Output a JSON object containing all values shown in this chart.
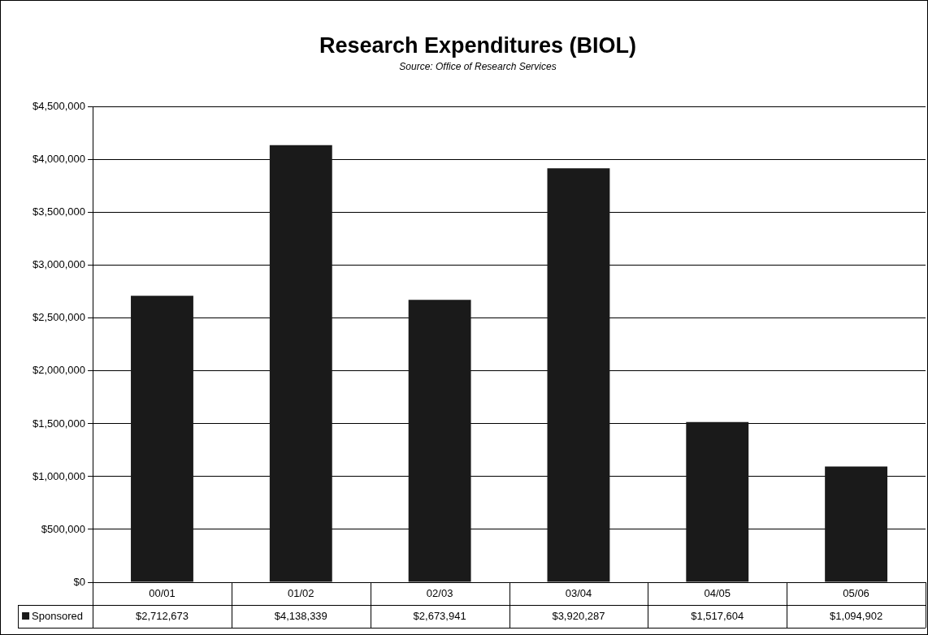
{
  "chart_data": {
    "type": "bar",
    "title": "Research Expenditures (BIOL)",
    "subtitle": "Source: Office of Research Services",
    "categories": [
      "00/01",
      "01/02",
      "02/03",
      "03/04",
      "04/05",
      "05/06"
    ],
    "series": [
      {
        "name": "Sponsored",
        "color": "#1a1a1a",
        "values": [
          2712673,
          4138339,
          2673941,
          3920287,
          1517604,
          1094902
        ],
        "value_labels": [
          "$2,712,673",
          "$4,138,339",
          "$2,673,941",
          "$3,920,287",
          "$1,517,604",
          "$1,094,902"
        ]
      }
    ],
    "ylim": [
      0,
      4500000
    ],
    "yticks": [
      {
        "value": 0,
        "label": "$0"
      },
      {
        "value": 500000,
        "label": "$500,000"
      },
      {
        "value": 1000000,
        "label": "$1,000,000"
      },
      {
        "value": 1500000,
        "label": "$1,500,000"
      },
      {
        "value": 2000000,
        "label": "$2,000,000"
      },
      {
        "value": 2500000,
        "label": "$2,500,000"
      },
      {
        "value": 3000000,
        "label": "$3,000,000"
      },
      {
        "value": 3500000,
        "label": "$3,500,000"
      },
      {
        "value": 4000000,
        "label": "$4,000,000"
      },
      {
        "value": 4500000,
        "label": "$4,500,000"
      }
    ],
    "grid": "y",
    "legend": "bottom left"
  }
}
